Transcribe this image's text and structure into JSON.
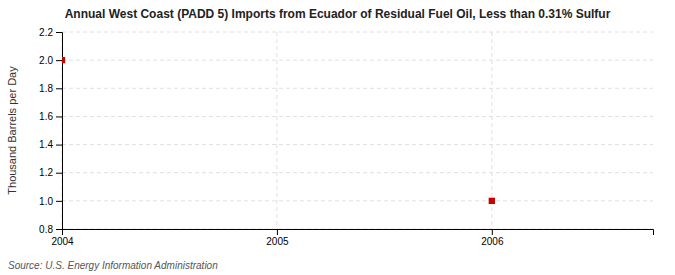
{
  "chart_data": {
    "type": "scatter",
    "title": "Annual West Coast (PADD 5) Imports from Ecuador of Residual Fuel Oil, Less than 0.31% Sulfur",
    "ylabel": "Thousand Barrels per Day",
    "source": "Source: U.S. Energy Information Administration",
    "x": [
      2004,
      2006
    ],
    "values": [
      2.0,
      1.0
    ],
    "color": "#CC0000",
    "marker": "square",
    "xlim": [
      2004.0,
      2006.75
    ],
    "ylim": [
      0.8,
      2.2
    ],
    "xticks": [
      2004,
      2005,
      2006
    ],
    "yticks": [
      0.8,
      {
        "value": 1.0,
        "label": "1.0"
      },
      1.2,
      1.4,
      1.6,
      1.8,
      {
        "value": 2.0,
        "label": "2.0"
      },
      2.2
    ],
    "grid": true
  }
}
